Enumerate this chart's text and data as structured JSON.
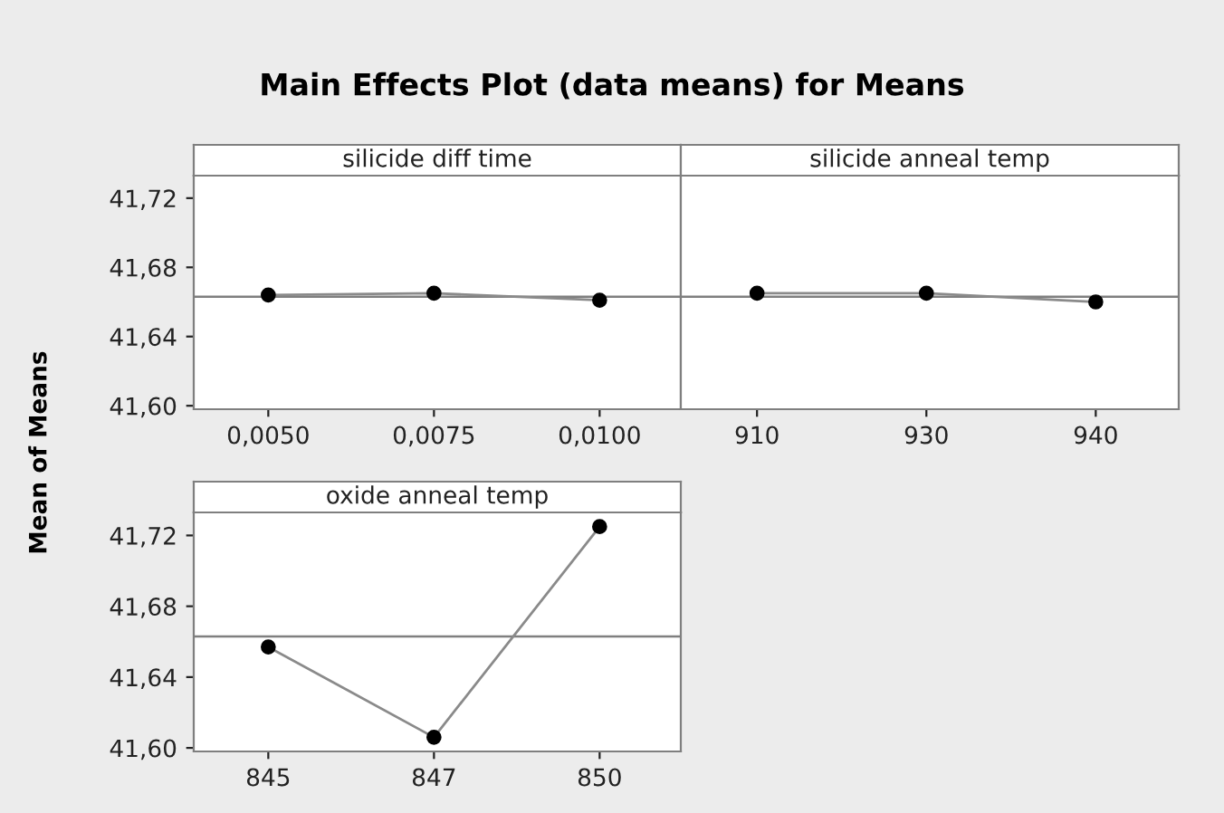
{
  "chart_data": [
    {
      "type": "line",
      "title": "silicide diff time",
      "ylabel": "Mean of Means",
      "annotations": [
        "Main Effects Plot (data means) for Means"
      ],
      "categories": [
        "0,0050",
        "0,0075",
        "0,0100"
      ],
      "series": [
        {
          "color": "#000000",
          "values": [
            41.664,
            41.665,
            41.661
          ]
        }
      ],
      "ylim": [
        41.598,
        41.733
      ],
      "yticks": [
        {
          "value": 41.6,
          "label": "41,60"
        },
        {
          "value": 41.64,
          "label": "41,64"
        },
        {
          "value": 41.68,
          "label": "41,68"
        },
        {
          "value": 41.72,
          "label": "41,72"
        }
      ],
      "ref_lines": [
        {
          "axis": "y",
          "value": 41.663,
          "color": "#7f7f7f"
        }
      ],
      "marker": "circle",
      "grid": false,
      "legend": false
    },
    {
      "type": "line",
      "title": "silicide anneal temp",
      "categories": [
        "910",
        "930",
        "940"
      ],
      "series": [
        {
          "color": "#000000",
          "values": [
            41.665,
            41.665,
            41.66
          ]
        }
      ],
      "ylim": [
        41.598,
        41.733
      ],
      "ref_lines": [
        {
          "axis": "y",
          "value": 41.663,
          "color": "#7f7f7f"
        }
      ],
      "marker": "circle",
      "grid": false,
      "legend": false,
      "tick_labels": "x"
    },
    {
      "type": "line",
      "title": "oxide anneal temp",
      "categories": [
        "845",
        "847",
        "850"
      ],
      "series": [
        {
          "color": "#000000",
          "values": [
            41.657,
            41.606,
            41.725
          ]
        }
      ],
      "ylim": [
        41.598,
        41.733
      ],
      "yticks": [
        {
          "value": 41.6,
          "label": "41,60"
        },
        {
          "value": 41.64,
          "label": "41,64"
        },
        {
          "value": 41.68,
          "label": "41,68"
        },
        {
          "value": 41.72,
          "label": "41,72"
        }
      ],
      "ref_lines": [
        {
          "axis": "y",
          "value": 41.663,
          "color": "#7f7f7f"
        }
      ],
      "marker": "circle",
      "grid": false,
      "legend": false
    }
  ]
}
